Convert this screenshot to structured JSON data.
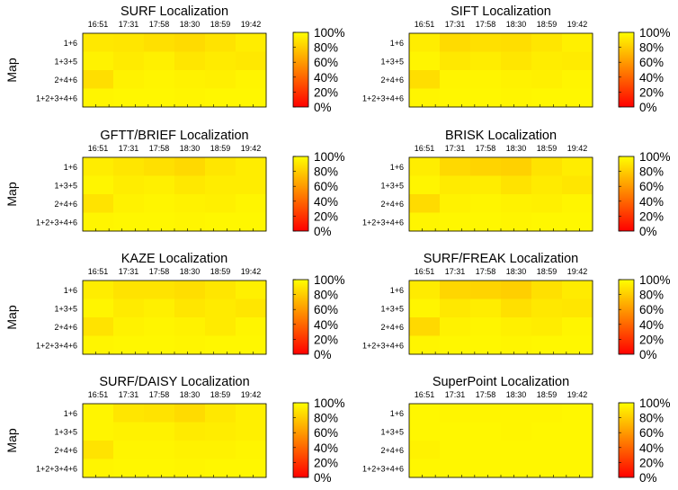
{
  "figure": {
    "ylabel": "Map"
  },
  "chart_data": [
    {
      "type": "heatmap",
      "title": "SURF Localization",
      "x": [
        "16:51",
        "17:31",
        "17:58",
        "18:30",
        "18:59",
        "19:42"
      ],
      "y": [
        "1+6",
        "1+3+5",
        "2+4+6",
        "1+2+3+4+6"
      ],
      "ylabel": "Map",
      "colorbar": {
        "ticks": [
          "100%",
          "80%",
          "60%",
          "40%",
          "20%",
          "0%"
        ],
        "range": [
          0,
          100
        ]
      },
      "values": [
        [
          91,
          90,
          88,
          86,
          89,
          93
        ],
        [
          95,
          92,
          94,
          90,
          92,
          91
        ],
        [
          87,
          95,
          96,
          95,
          94,
          96
        ],
        [
          96,
          97,
          97,
          96,
          97,
          97
        ]
      ]
    },
    {
      "type": "heatmap",
      "title": "SIFT Localization",
      "x": [
        "16:51",
        "17:31",
        "17:58",
        "18:30",
        "18:59",
        "19:42"
      ],
      "y": [
        "1+6",
        "1+3+5",
        "2+4+6",
        "1+2+3+4+6"
      ],
      "colorbar": {
        "ticks": [
          "100%",
          "80%",
          "60%",
          "40%",
          "20%",
          "0%"
        ],
        "range": [
          0,
          100
        ]
      },
      "values": [
        [
          93,
          86,
          88,
          87,
          90,
          94
        ],
        [
          96,
          91,
          93,
          90,
          93,
          92
        ],
        [
          87,
          96,
          96,
          95,
          94,
          96
        ],
        [
          96,
          97,
          97,
          96,
          97,
          97
        ]
      ]
    },
    {
      "type": "heatmap",
      "title": "GFTT/BRIEF Localization",
      "x": [
        "16:51",
        "17:31",
        "17:58",
        "18:30",
        "18:59",
        "19:42"
      ],
      "y": [
        "1+6",
        "1+3+5",
        "2+4+6",
        "1+2+3+4+6"
      ],
      "ylabel": "Map",
      "colorbar": {
        "ticks": [
          "100%",
          "80%",
          "60%",
          "40%",
          "20%",
          "0%"
        ],
        "range": [
          0,
          100
        ]
      },
      "values": [
        [
          93,
          90,
          88,
          85,
          90,
          93
        ],
        [
          96,
          93,
          94,
          91,
          93,
          93
        ],
        [
          89,
          95,
          96,
          95,
          94,
          96
        ],
        [
          96,
          97,
          97,
          96,
          97,
          97
        ]
      ]
    },
    {
      "type": "heatmap",
      "title": "BRISK Localization",
      "x": [
        "16:51",
        "17:31",
        "17:58",
        "18:30",
        "18:59",
        "19:42"
      ],
      "y": [
        "1+6",
        "1+3+5",
        "2+4+6",
        "1+2+3+4+6"
      ],
      "colorbar": {
        "ticks": [
          "100%",
          "80%",
          "60%",
          "40%",
          "20%",
          "0%"
        ],
        "range": [
          0,
          100
        ]
      },
      "values": [
        [
          93,
          85,
          83,
          82,
          89,
          93
        ],
        [
          96,
          92,
          93,
          89,
          92,
          90
        ],
        [
          86,
          95,
          96,
          95,
          94,
          96
        ],
        [
          96,
          97,
          97,
          96,
          97,
          97
        ]
      ]
    },
    {
      "type": "heatmap",
      "title": "KAZE Localization",
      "x": [
        "16:51",
        "17:31",
        "17:58",
        "18:30",
        "18:59",
        "19:42"
      ],
      "y": [
        "1+6",
        "1+3+5",
        "2+4+6",
        "1+2+3+4+6"
      ],
      "ylabel": "Map",
      "colorbar": {
        "ticks": [
          "100%",
          "80%",
          "60%",
          "40%",
          "20%",
          "0%"
        ],
        "range": [
          0,
          100
        ]
      },
      "values": [
        [
          93,
          89,
          89,
          87,
          90,
          94
        ],
        [
          96,
          92,
          94,
          90,
          92,
          90
        ],
        [
          89,
          95,
          96,
          95,
          92,
          96
        ],
        [
          96,
          97,
          97,
          96,
          97,
          97
        ]
      ]
    },
    {
      "type": "heatmap",
      "title": "SURF/FREAK Localization",
      "x": [
        "16:51",
        "17:31",
        "17:58",
        "18:30",
        "18:59",
        "19:42"
      ],
      "y": [
        "1+6",
        "1+3+5",
        "2+4+6",
        "1+2+3+4+6"
      ],
      "colorbar": {
        "ticks": [
          "100%",
          "80%",
          "60%",
          "40%",
          "20%",
          "0%"
        ],
        "range": [
          0,
          100
        ]
      },
      "values": [
        [
          92,
          84,
          83,
          81,
          88,
          92
        ],
        [
          96,
          91,
          93,
          88,
          91,
          90
        ],
        [
          85,
          95,
          96,
          94,
          93,
          96
        ],
        [
          96,
          97,
          97,
          96,
          97,
          97
        ]
      ]
    },
    {
      "type": "heatmap",
      "title": "SURF/DAISY Localization",
      "x": [
        "16:51",
        "17:31",
        "17:58",
        "18:30",
        "18:59",
        "19:42"
      ],
      "y": [
        "1+6",
        "1+3+5",
        "2+4+6",
        "1+2+3+4+6"
      ],
      "ylabel": "Map",
      "colorbar": {
        "ticks": [
          "100%",
          "80%",
          "60%",
          "40%",
          "20%",
          "0%"
        ],
        "range": [
          0,
          100
        ]
      },
      "values": [
        [
          96,
          90,
          89,
          86,
          91,
          94
        ],
        [
          96,
          95,
          95,
          92,
          93,
          94
        ],
        [
          89,
          96,
          96,
          95,
          95,
          96
        ],
        [
          96,
          97,
          97,
          96,
          97,
          97
        ]
      ]
    },
    {
      "type": "heatmap",
      "title": "SuperPoint Localization",
      "x": [
        "16:51",
        "17:31",
        "17:58",
        "18:30",
        "18:59",
        "19:42"
      ],
      "y": [
        "1+6",
        "1+3+5",
        "2+4+6",
        "1+2+3+4+6"
      ],
      "colorbar": {
        "ticks": [
          "100%",
          "80%",
          "60%",
          "40%",
          "20%",
          "0%"
        ],
        "range": [
          0,
          100
        ]
      },
      "values": [
        [
          97,
          96,
          96,
          96,
          96,
          97
        ],
        [
          97,
          97,
          97,
          96,
          97,
          97
        ],
        [
          95,
          97,
          97,
          97,
          97,
          97
        ],
        [
          97,
          97,
          97,
          97,
          97,
          97
        ]
      ]
    }
  ]
}
